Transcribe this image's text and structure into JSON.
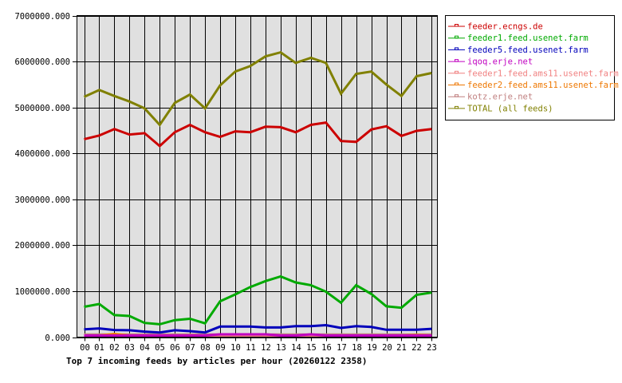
{
  "chart_data": {
    "type": "line",
    "title": "Top 7 incoming feeds by articles per hour (20260122 2358)",
    "xlabel": "",
    "ylabel": "",
    "ylim": [
      0,
      7000000
    ],
    "y_ticks": [
      "0.000",
      "1000000.000",
      "2000000.000",
      "3000000.000",
      "4000000.000",
      "5000000.000",
      "6000000.000",
      "7000000.000"
    ],
    "grid": true,
    "legend_position": "right",
    "categories": [
      "00",
      "01",
      "02",
      "03",
      "04",
      "05",
      "06",
      "07",
      "08",
      "09",
      "10",
      "11",
      "12",
      "13",
      "14",
      "15",
      "16",
      "17",
      "18",
      "19",
      "20",
      "21",
      "22",
      "23"
    ],
    "series": [
      {
        "name": "feeder.ecngs.de",
        "color": "#cc0000",
        "values": [
          4310000,
          4390000,
          4530000,
          4410000,
          4440000,
          4160000,
          4460000,
          4620000,
          4460000,
          4360000,
          4480000,
          4460000,
          4580000,
          4570000,
          4460000,
          4620000,
          4670000,
          4270000,
          4250000,
          4520000,
          4590000,
          4380000,
          4490000,
          4530000
        ]
      },
      {
        "name": "feeder1.feed.usenet.farm",
        "color": "#00aa00",
        "values": [
          660000,
          720000,
          480000,
          460000,
          310000,
          280000,
          370000,
          400000,
          300000,
          780000,
          930000,
          1090000,
          1220000,
          1320000,
          1190000,
          1130000,
          990000,
          750000,
          1130000,
          940000,
          670000,
          640000,
          920000,
          970000
        ]
      },
      {
        "name": "feeder5.feed.usenet.farm",
        "color": "#0000bb",
        "values": [
          170000,
          190000,
          155000,
          150000,
          120000,
          100000,
          150000,
          130000,
          100000,
          230000,
          230000,
          230000,
          210000,
          210000,
          240000,
          240000,
          260000,
          200000,
          240000,
          220000,
          160000,
          160000,
          160000,
          180000
        ]
      },
      {
        "name": "iqoq.erje.net",
        "color": "#c000c0",
        "values": [
          0,
          0,
          0,
          0,
          0,
          0,
          0,
          0,
          0,
          60000,
          60000,
          60000,
          60000,
          0,
          0,
          60000,
          0,
          0,
          0,
          0,
          0,
          0,
          0,
          0
        ]
      },
      {
        "name": "feeder1.feed.ams11.usenet.farm",
        "color": "#f08080",
        "values": [
          10000,
          10000,
          10000,
          10000,
          10000,
          10000,
          10000,
          10000,
          10000,
          10000,
          10000,
          10000,
          10000,
          10000,
          10000,
          10000,
          10000,
          10000,
          10000,
          10000,
          10000,
          10000,
          10000,
          10000
        ]
      },
      {
        "name": "feeder2.feed.ams11.usenet.farm",
        "color": "#ee7700",
        "values": [
          20000,
          5000,
          70000,
          5000,
          20000,
          5000,
          5000,
          5000,
          5000,
          5000,
          5000,
          5000,
          5000,
          20000,
          20000,
          20000,
          20000,
          20000,
          20000,
          20000,
          20000,
          20000,
          45000,
          20000
        ]
      },
      {
        "name": "kotz.erje.net",
        "color": "#c08080",
        "values": [
          55000,
          55000,
          55000,
          55000,
          55000,
          55000,
          55000,
          55000,
          55000,
          55000,
          55000,
          55000,
          55000,
          55000,
          55000,
          55000,
          55000,
          55000,
          55000,
          55000,
          55000,
          55000,
          55000,
          55000
        ]
      },
      {
        "name": "TOTAL (all feeds)",
        "color": "#808000",
        "values": [
          5230000,
          5380000,
          5250000,
          5130000,
          4980000,
          4620000,
          5100000,
          5280000,
          4980000,
          5480000,
          5780000,
          5900000,
          6110000,
          6200000,
          5970000,
          6080000,
          5970000,
          5300000,
          5730000,
          5780000,
          5500000,
          5250000,
          5680000,
          5750000
        ]
      }
    ]
  },
  "caption": "Top 7 incoming feeds by articles per hour (20260122 2358)"
}
